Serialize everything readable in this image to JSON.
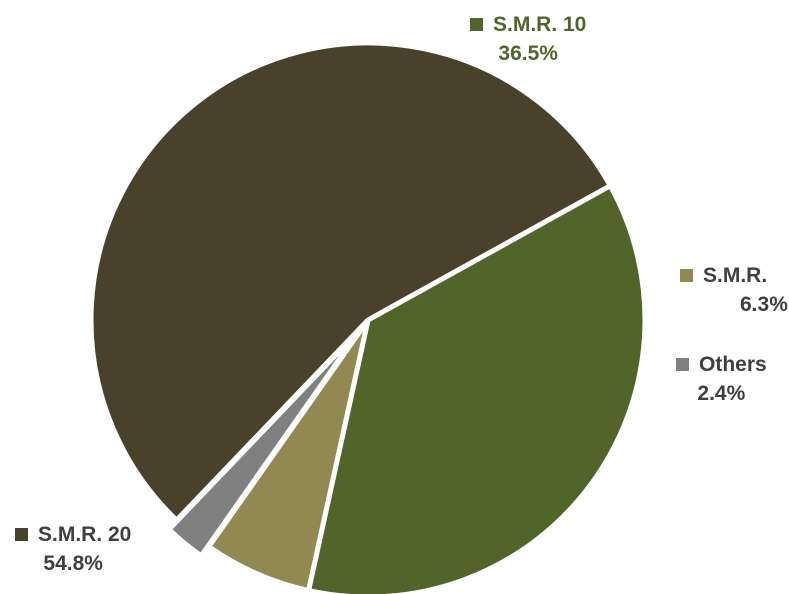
{
  "chart_data": {
    "type": "pie",
    "start_angle_deg": 61,
    "direction": "clockwise",
    "slices": [
      {
        "name": "S.M.R. 10",
        "value": 36.5,
        "label": "36.5%",
        "color": "#51652a",
        "label_color": "#51652a",
        "exploded": false
      },
      {
        "name": "S.M.R.",
        "value": 6.3,
        "label": "6.3%",
        "color": "#928851",
        "label_color": "#3f3f3f",
        "exploded": false
      },
      {
        "name": "Others",
        "value": 2.4,
        "label": "2.4%",
        "color": "#808080",
        "label_color": "#3f3f3f",
        "exploded": true
      },
      {
        "name": "S.M.R. 20",
        "value": 54.8,
        "label": "54.8%",
        "color": "#4a412b",
        "label_color": "#3f3f3f",
        "exploded": false
      }
    ],
    "legend": "none",
    "background": "#ffffff"
  }
}
